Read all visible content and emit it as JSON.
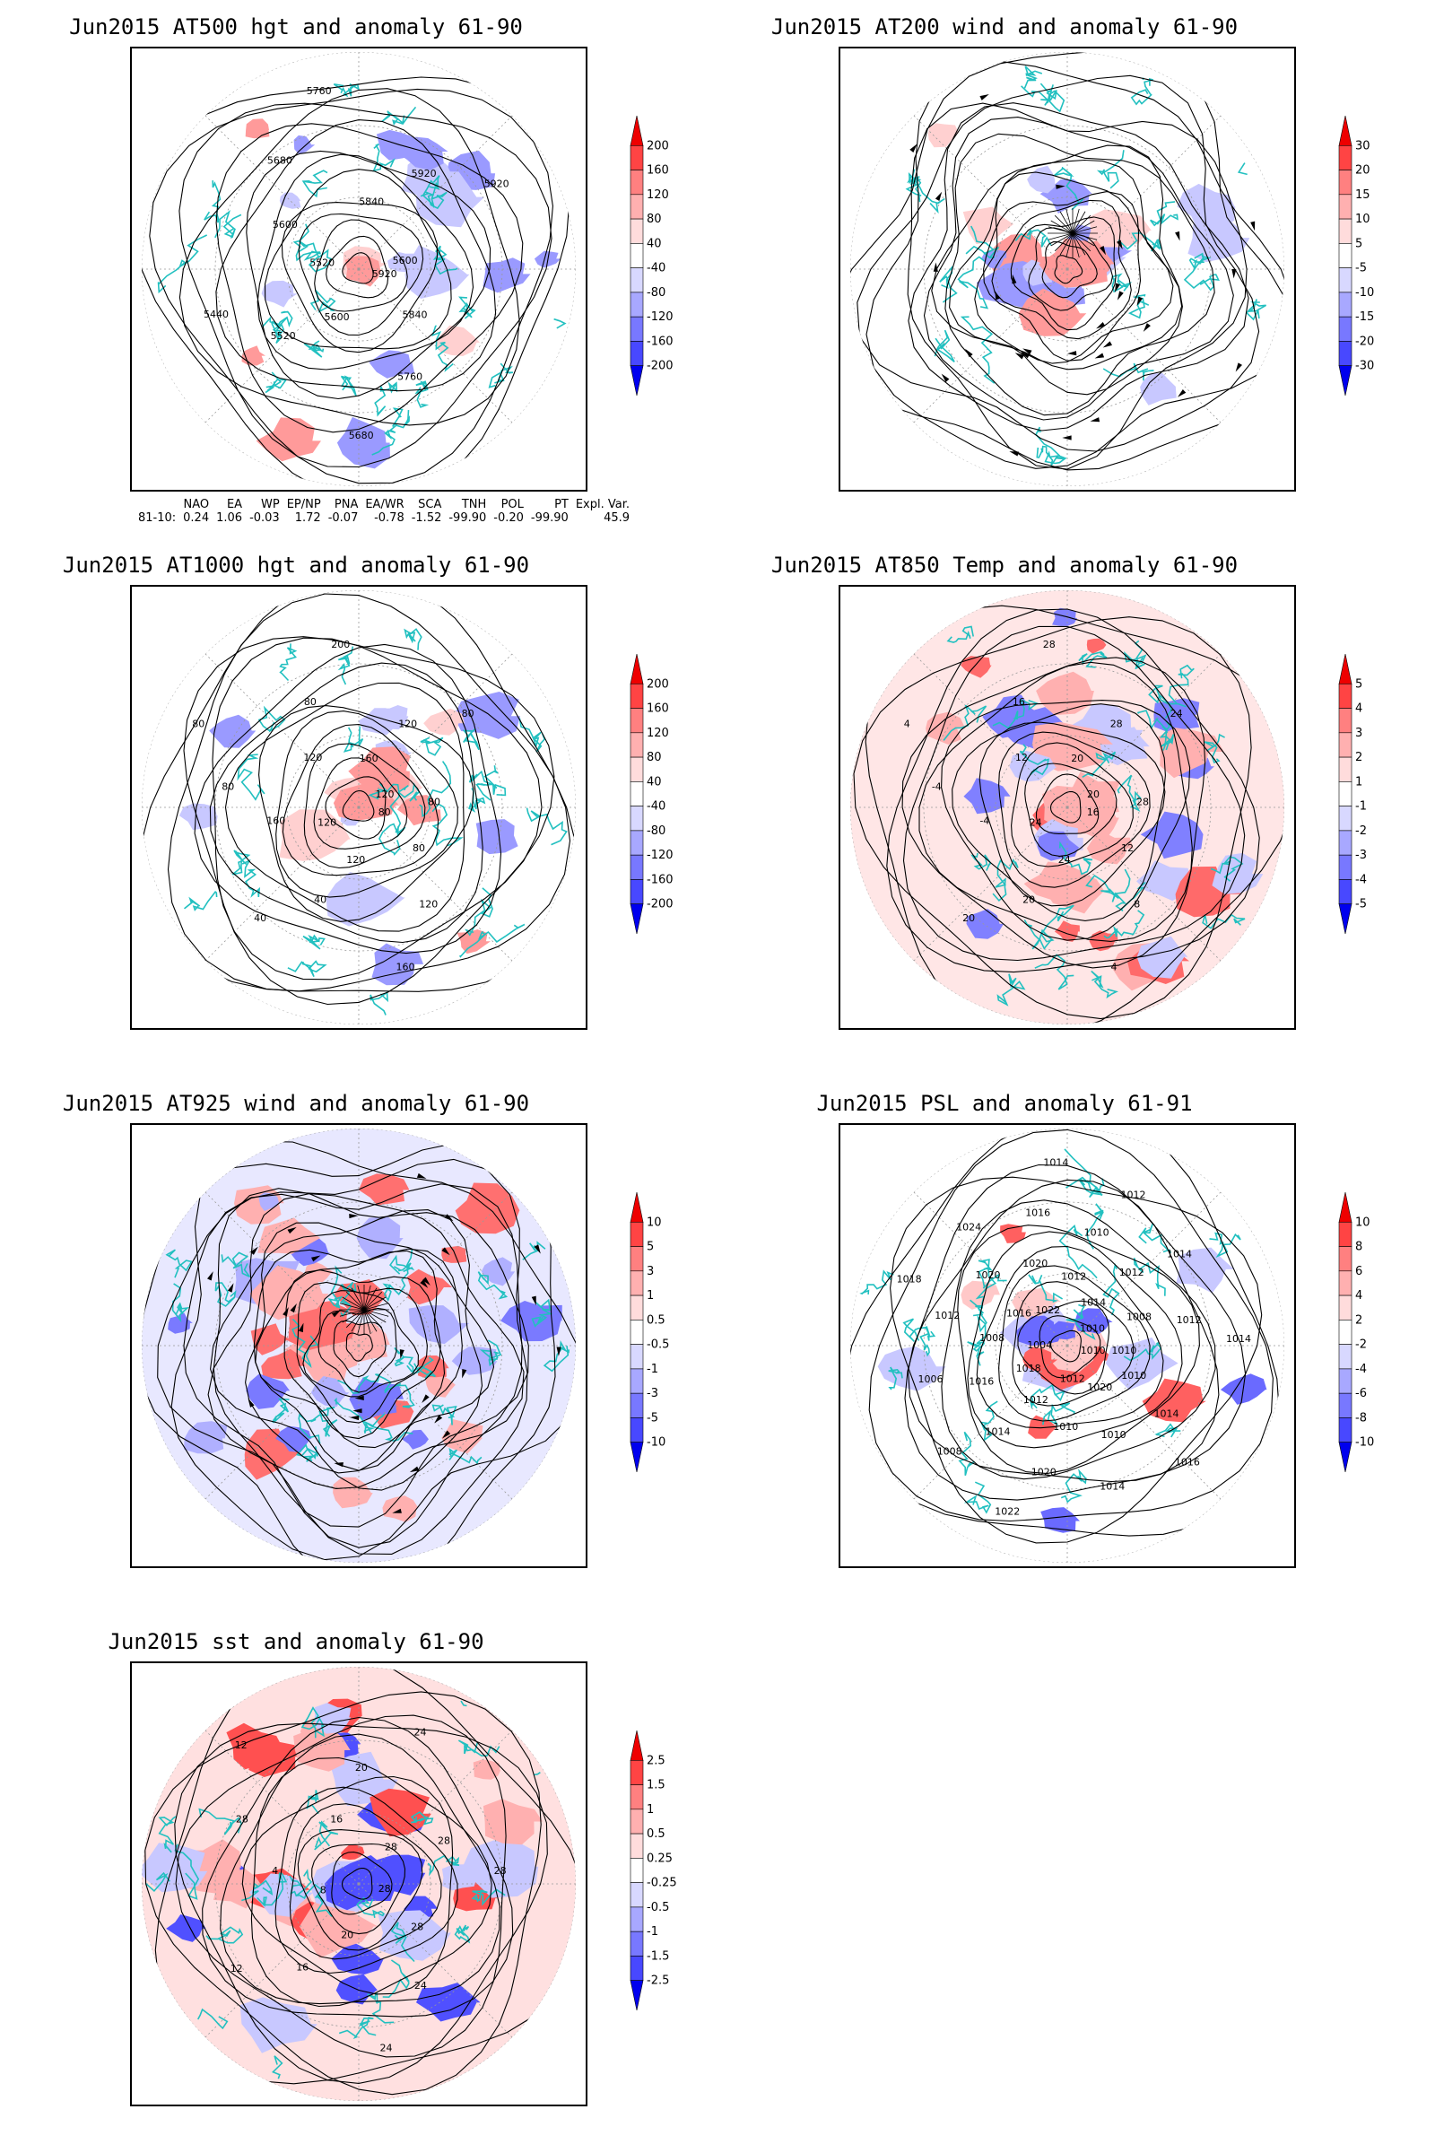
{
  "panels": [
    {
      "id": "p500",
      "title": "Jun2015 AT500 hgt and anomaly 61-90",
      "colorbar": [
        "200",
        "160",
        "120",
        "80",
        "40",
        "-40",
        "-80",
        "-120",
        "-160",
        "-200"
      ],
      "contour_labels": [
        "5920",
        "5840",
        "5760",
        "5680",
        "5600",
        "5520",
        "5440",
        "5520",
        "5600",
        "5680",
        "5760",
        "5840",
        "5920",
        "5920",
        "5600"
      ],
      "background": "none",
      "anomaly_colors": [
        "#ffd0d0",
        "#ff9a9a",
        "#c8c8ff",
        "#9a9aff"
      ]
    },
    {
      "id": "p200",
      "title": "Jun2015 AT200 wind and anomaly 61-90",
      "colorbar": [
        "30",
        "20",
        "15",
        "10",
        "5",
        "-5",
        "-10",
        "-15",
        "-20",
        "-30"
      ],
      "contour_labels": [],
      "background": "none",
      "anomaly_colors": [
        "#ffd0d0",
        "#ff9a9a",
        "#c8c8ff",
        "#9a9aff"
      ]
    },
    {
      "id": "p1000",
      "title": "Jun2015 AT1000 hgt and anomaly 61-90",
      "colorbar": [
        "200",
        "160",
        "120",
        "80",
        "40",
        "-40",
        "-80",
        "-120",
        "-160",
        "-200"
      ],
      "contour_labels": [
        "80",
        "80",
        "120",
        "160",
        "120",
        "40",
        "40",
        "120",
        "160",
        "80",
        "80",
        "120",
        "80",
        "200",
        "160",
        "120",
        "80",
        "120",
        "80"
      ],
      "background": "none",
      "anomaly_colors": [
        "#ffd0d0",
        "#ff9a9a",
        "#c8c8ff",
        "#9a9aff"
      ]
    },
    {
      "id": "p850",
      "title": "Jun2015 AT850 Temp and anomaly 61-90",
      "colorbar": [
        "5",
        "4",
        "3",
        "2",
        "1",
        "-1",
        "-2",
        "-3",
        "-4",
        "-5"
      ],
      "contour_labels": [
        "16",
        "12",
        "8",
        "4",
        "24",
        "20",
        "20",
        "24",
        "-4",
        "-4",
        "4",
        "12",
        "16",
        "28",
        "20",
        "28",
        "24",
        "20",
        "28"
      ],
      "background": "#ffe6e6",
      "anomaly_colors": [
        "#ffb0b0",
        "#ff6a6a",
        "#c8c8ff",
        "#8080ff"
      ]
    },
    {
      "id": "p925",
      "title": "Jun2015 AT925 wind and anomaly 61-90",
      "colorbar": [
        "10",
        "5",
        "3",
        "1",
        "0.5",
        "-0.5",
        "-1",
        "-3",
        "-5",
        "-10"
      ],
      "contour_labels": [],
      "background": "#e8e8ff",
      "anomaly_colors": [
        "#ffb0b0",
        "#ff7070",
        "#b0b0ff",
        "#7a7aff"
      ]
    },
    {
      "id": "ppsl",
      "title": "Jun2015 PSL and anomaly 61-91",
      "colorbar": [
        "10",
        "8",
        "6",
        "4",
        "2",
        "-2",
        "-4",
        "-6",
        "-8",
        "-10"
      ],
      "contour_labels": [
        "1010",
        "1010",
        "1014",
        "1016",
        "1020",
        "1010",
        "1014",
        "1012",
        "1010",
        "1020",
        "1022",
        "1012",
        "1014",
        "1008",
        "1018",
        "1016",
        "1006",
        "1004",
        "1008",
        "1012",
        "1018",
        "1016",
        "1020",
        "1024",
        "1022",
        "1020",
        "1016",
        "1014",
        "1012",
        "1010",
        "1012",
        "1014",
        "1012",
        "1014",
        "1010",
        "1008",
        "1012",
        "1014",
        "1010"
      ],
      "background": "none",
      "anomaly_colors": [
        "#ffc8c8",
        "#ff6060",
        "#c8c8ff",
        "#6a6aff"
      ]
    },
    {
      "id": "psst",
      "title": "Jun2015 sst and anomaly 61-90",
      "colorbar": [
        "2.5",
        "1.5",
        "1",
        "0.5",
        "0.25",
        "-0.25",
        "-0.5",
        "-1",
        "-1.5",
        "-2.5"
      ],
      "contour_labels": [
        "28",
        "28",
        "24",
        "24",
        "20",
        "16",
        "12",
        "8",
        "4",
        "28",
        "12",
        "16",
        "20",
        "24",
        "28",
        "28",
        "28"
      ],
      "background": "#ffe0e0",
      "anomaly_colors": [
        "#ffb0b0",
        "#ff5050",
        "#c8c8ff",
        "#5050ff"
      ]
    }
  ],
  "indices": {
    "headers": [
      "NAO",
      "EA",
      "WP",
      "EP/NP",
      "PNA",
      "EA/WR",
      "SCA",
      "TNH",
      "POL",
      "PT",
      "Expl. Var."
    ],
    "row_label": "81-10:",
    "values": [
      "0.24",
      "1.06",
      "-0.03",
      "1.72",
      "-0.07",
      "-0.78",
      "-1.52",
      "-99.90",
      "-0.20",
      "-99.90",
      "45.9"
    ]
  },
  "colors": {
    "coastline": "#22c0c0",
    "contour": "#000000",
    "cbar": [
      "#ee0000",
      "#ff4444",
      "#ff8080",
      "#ffb0b0",
      "#ffdcdc",
      "#ffffff",
      "#d8d8ff",
      "#a8a8ff",
      "#7878ff",
      "#4848ff",
      "#0000ee"
    ]
  }
}
